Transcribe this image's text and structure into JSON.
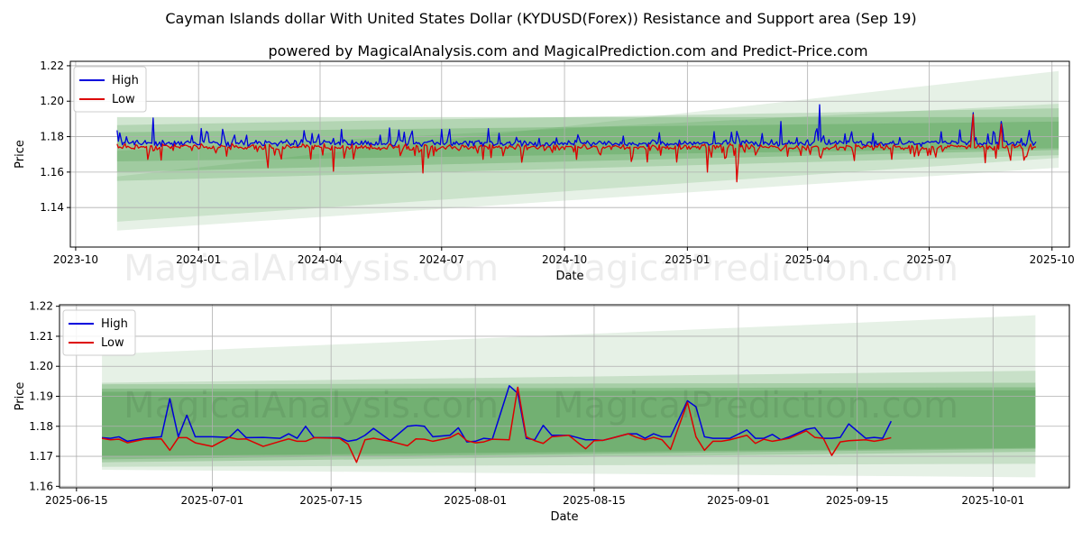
{
  "page": {
    "title": "Cayman Islands dollar With United States Dollar (KYDUSD(Forex)) Resistance and Support area (Sep 19)",
    "subtitle": "powered by MagicalAnalysis.com and MagicalPrediction.com and Predict-Price.com",
    "watermarks": [
      "MagicalAnalysis.com",
      "MagicalPrediction.com"
    ]
  },
  "colors": {
    "high": "#0000dd",
    "low": "#dd0000",
    "band": "#2e8b2e",
    "grid": "#b0b0b0"
  },
  "chart_data": [
    {
      "type": "line",
      "panel": "top",
      "xlabel": "Date",
      "ylabel": "Price",
      "xlim": [
        "2023-09-27",
        "2025-10-14"
      ],
      "ylim": [
        1.1177,
        1.2225
      ],
      "x_ticks": [
        {
          "date": "2023-10-01",
          "label": "2023-10"
        },
        {
          "date": "2024-01-01",
          "label": "2024-01"
        },
        {
          "date": "2024-04-01",
          "label": "2024-04"
        },
        {
          "date": "2024-07-01",
          "label": "2024-07"
        },
        {
          "date": "2024-10-01",
          "label": "2024-10"
        },
        {
          "date": "2025-01-01",
          "label": "2025-01"
        },
        {
          "date": "2025-04-01",
          "label": "2025-04"
        },
        {
          "date": "2025-07-01",
          "label": "2025-07"
        },
        {
          "date": "2025-10-01",
          "label": "2025-10"
        }
      ],
      "y_ticks": [
        1.14,
        1.16,
        1.18,
        1.2,
        1.22
      ],
      "legend": {
        "position": "top-left",
        "entries": [
          "High",
          "Low"
        ]
      },
      "series_range": {
        "start": "2023-11-01",
        "end": "2025-09-19"
      },
      "base_price": 1.1752,
      "highlights": [
        {
          "date": "2023-11-04",
          "high": 1.1835,
          "low": 1.1735
        },
        {
          "date": "2023-11-28",
          "high": 1.1905,
          "low": 1.172
        },
        {
          "date": "2024-01-13",
          "high": 1.1805,
          "low": 1.169
        },
        {
          "date": "2024-02-22",
          "high": 1.177,
          "low": 1.1625
        },
        {
          "date": "2024-04-11",
          "high": 1.179,
          "low": 1.1605
        },
        {
          "date": "2024-06-17",
          "high": 1.176,
          "low": 1.1595
        },
        {
          "date": "2024-08-05",
          "high": 1.1845,
          "low": 1.173
        },
        {
          "date": "2025-01-16",
          "high": 1.1765,
          "low": 1.16
        },
        {
          "date": "2025-02-07",
          "high": 1.183,
          "low": 1.1545
        },
        {
          "date": "2025-03-12",
          "high": 1.1885,
          "low": 1.172
        },
        {
          "date": "2025-04-10",
          "high": 1.198,
          "low": 1.169
        },
        {
          "date": "2025-05-06",
          "high": 1.1765,
          "low": 1.1665
        },
        {
          "date": "2025-07-06",
          "high": 1.1775,
          "low": 1.1685
        },
        {
          "date": "2025-08-03",
          "high": 1.1935,
          "low": 1.1925
        },
        {
          "date": "2025-08-24",
          "high": 1.1885,
          "low": 1.187
        }
      ],
      "bands": [
        {
          "start": "2023-11-01",
          "end": "2025-10-06",
          "upper": [
            1.1575,
            1.217
          ],
          "lower": [
            1.127,
            1.1625
          ],
          "opacity": 0.12
        },
        {
          "start": "2023-11-01",
          "end": "2025-10-06",
          "upper": [
            1.172,
            1.1985
          ],
          "lower": [
            1.132,
            1.168
          ],
          "opacity": 0.14
        },
        {
          "start": "2023-11-01",
          "end": "2025-10-06",
          "upper": [
            1.1865,
            1.196
          ],
          "lower": [
            1.155,
            1.1695
          ],
          "opacity": 0.18
        },
        {
          "start": "2023-11-01",
          "end": "2025-10-06",
          "upper": [
            1.191,
            1.191
          ],
          "lower": [
            1.16,
            1.1725
          ],
          "opacity": 0.22
        },
        {
          "start": "2023-11-01",
          "end": "2025-10-06",
          "upper": [
            1.1825,
            1.1885
          ],
          "lower": [
            1.166,
            1.1735
          ],
          "opacity": 0.22
        }
      ]
    },
    {
      "type": "line",
      "panel": "bottom",
      "xlabel": "Date",
      "ylabel": "Price",
      "xlim": [
        "2025-06-13",
        "2025-10-10"
      ],
      "ylim": [
        1.1595,
        1.2205
      ],
      "x_ticks": [
        {
          "date": "2025-06-15",
          "label": "2025-06-15"
        },
        {
          "date": "2025-07-01",
          "label": "2025-07-01"
        },
        {
          "date": "2025-07-15",
          "label": "2025-07-15"
        },
        {
          "date": "2025-08-01",
          "label": "2025-08-01"
        },
        {
          "date": "2025-08-15",
          "label": "2025-08-15"
        },
        {
          "date": "2025-09-01",
          "label": "2025-09-01"
        },
        {
          "date": "2025-09-15",
          "label": "2025-09-15"
        },
        {
          "date": "2025-10-01",
          "label": "2025-10-01"
        }
      ],
      "y_ticks": [
        1.16,
        1.17,
        1.18,
        1.19,
        1.2,
        1.21,
        1.22
      ],
      "legend": {
        "position": "top-left",
        "entries": [
          "High",
          "Low"
        ]
      },
      "high": [
        [
          "2025-06-18",
          1.1762
        ],
        [
          "2025-06-19",
          1.176
        ],
        [
          "2025-06-20",
          1.1765
        ],
        [
          "2025-06-21",
          1.175
        ],
        [
          "2025-06-23",
          1.176
        ],
        [
          "2025-06-25",
          1.1765
        ],
        [
          "2025-06-26",
          1.1892
        ],
        [
          "2025-06-27",
          1.1765
        ],
        [
          "2025-06-28",
          1.1837
        ],
        [
          "2025-06-29",
          1.1765
        ],
        [
          "2025-07-01",
          1.1765
        ],
        [
          "2025-07-03",
          1.1763
        ],
        [
          "2025-07-04",
          1.179
        ],
        [
          "2025-07-05",
          1.1762
        ],
        [
          "2025-07-07",
          1.1763
        ],
        [
          "2025-07-09",
          1.176
        ],
        [
          "2025-07-10",
          1.1775
        ],
        [
          "2025-07-11",
          1.176
        ],
        [
          "2025-07-12",
          1.18
        ],
        [
          "2025-07-13",
          1.1762
        ],
        [
          "2025-07-16",
          1.1762
        ],
        [
          "2025-07-17",
          1.175
        ],
        [
          "2025-07-18",
          1.1755
        ],
        [
          "2025-07-19",
          1.177
        ],
        [
          "2025-07-20",
          1.1793
        ],
        [
          "2025-07-22",
          1.1752
        ],
        [
          "2025-07-24",
          1.18
        ],
        [
          "2025-07-25",
          1.1803
        ],
        [
          "2025-07-26",
          1.18
        ],
        [
          "2025-07-27",
          1.1765
        ],
        [
          "2025-07-29",
          1.177
        ],
        [
          "2025-07-30",
          1.1795
        ],
        [
          "2025-07-31",
          1.1748
        ],
        [
          "2025-08-01",
          1.175
        ],
        [
          "2025-08-02",
          1.176
        ],
        [
          "2025-08-03",
          1.1757
        ],
        [
          "2025-08-05",
          1.1935
        ],
        [
          "2025-08-06",
          1.191
        ],
        [
          "2025-08-07",
          1.176
        ],
        [
          "2025-08-08",
          1.1755
        ],
        [
          "2025-08-09",
          1.1803
        ],
        [
          "2025-08-10",
          1.177
        ],
        [
          "2025-08-12",
          1.177
        ],
        [
          "2025-08-14",
          1.1755
        ],
        [
          "2025-08-15",
          1.1755
        ],
        [
          "2025-08-16",
          1.1753
        ],
        [
          "2025-08-17",
          1.176
        ],
        [
          "2025-08-19",
          1.1775
        ],
        [
          "2025-08-20",
          1.1775
        ],
        [
          "2025-08-21",
          1.176
        ],
        [
          "2025-08-22",
          1.1775
        ],
        [
          "2025-08-23",
          1.1765
        ],
        [
          "2025-08-24",
          1.1765
        ],
        [
          "2025-08-26",
          1.1885
        ],
        [
          "2025-08-27",
          1.1865
        ],
        [
          "2025-08-28",
          1.1765
        ],
        [
          "2025-08-29",
          1.176
        ],
        [
          "2025-08-30",
          1.176
        ],
        [
          "2025-08-31",
          1.176
        ],
        [
          "2025-09-02",
          1.1788
        ],
        [
          "2025-09-03",
          1.176
        ],
        [
          "2025-09-04",
          1.176
        ],
        [
          "2025-09-05",
          1.1773
        ],
        [
          "2025-09-06",
          1.1755
        ],
        [
          "2025-09-07",
          1.1765
        ],
        [
          "2025-09-09",
          1.179
        ],
        [
          "2025-09-10",
          1.1795
        ],
        [
          "2025-09-11",
          1.176
        ],
        [
          "2025-09-12",
          1.176
        ],
        [
          "2025-09-13",
          1.1763
        ],
        [
          "2025-09-14",
          1.1808
        ],
        [
          "2025-09-16",
          1.176
        ],
        [
          "2025-09-17",
          1.1763
        ],
        [
          "2025-09-18",
          1.176
        ],
        [
          "2025-09-19",
          1.1817
        ]
      ],
      "low": [
        [
          "2025-06-18",
          1.176
        ],
        [
          "2025-06-19",
          1.1755
        ],
        [
          "2025-06-20",
          1.1757
        ],
        [
          "2025-06-21",
          1.1745
        ],
        [
          "2025-06-23",
          1.1757
        ],
        [
          "2025-06-25",
          1.1758
        ],
        [
          "2025-06-26",
          1.172
        ],
        [
          "2025-06-27",
          1.1762
        ],
        [
          "2025-06-28",
          1.1762
        ],
        [
          "2025-06-29",
          1.1745
        ],
        [
          "2025-07-01",
          1.1733
        ],
        [
          "2025-07-03",
          1.1763
        ],
        [
          "2025-07-04",
          1.1757
        ],
        [
          "2025-07-05",
          1.1758
        ],
        [
          "2025-07-07",
          1.1733
        ],
        [
          "2025-07-09",
          1.175
        ],
        [
          "2025-07-10",
          1.1758
        ],
        [
          "2025-07-11",
          1.175
        ],
        [
          "2025-07-12",
          1.175
        ],
        [
          "2025-07-13",
          1.1762
        ],
        [
          "2025-07-16",
          1.176
        ],
        [
          "2025-07-17",
          1.174
        ],
        [
          "2025-07-18",
          1.168
        ],
        [
          "2025-07-19",
          1.1755
        ],
        [
          "2025-07-20",
          1.176
        ],
        [
          "2025-07-22",
          1.175
        ],
        [
          "2025-07-24",
          1.1735
        ],
        [
          "2025-07-25",
          1.1758
        ],
        [
          "2025-07-26",
          1.1757
        ],
        [
          "2025-07-27",
          1.175
        ],
        [
          "2025-07-29",
          1.1762
        ],
        [
          "2025-07-30",
          1.1777
        ],
        [
          "2025-07-31",
          1.1752
        ],
        [
          "2025-08-01",
          1.1745
        ],
        [
          "2025-08-02",
          1.1748
        ],
        [
          "2025-08-03",
          1.1757
        ],
        [
          "2025-08-05",
          1.1755
        ],
        [
          "2025-08-06",
          1.193
        ],
        [
          "2025-08-07",
          1.1765
        ],
        [
          "2025-08-08",
          1.1752
        ],
        [
          "2025-08-09",
          1.1743
        ],
        [
          "2025-08-10",
          1.1765
        ],
        [
          "2025-08-12",
          1.177
        ],
        [
          "2025-08-14",
          1.1725
        ],
        [
          "2025-08-15",
          1.1752
        ],
        [
          "2025-08-16",
          1.1753
        ],
        [
          "2025-08-17",
          1.176
        ],
        [
          "2025-08-19",
          1.1775
        ],
        [
          "2025-08-20",
          1.1763
        ],
        [
          "2025-08-21",
          1.1755
        ],
        [
          "2025-08-22",
          1.1763
        ],
        [
          "2025-08-23",
          1.1755
        ],
        [
          "2025-08-24",
          1.1723
        ],
        [
          "2025-08-26",
          1.188
        ],
        [
          "2025-08-27",
          1.1765
        ],
        [
          "2025-08-28",
          1.172
        ],
        [
          "2025-08-29",
          1.175
        ],
        [
          "2025-08-30",
          1.175
        ],
        [
          "2025-08-31",
          1.1755
        ],
        [
          "2025-09-02",
          1.177
        ],
        [
          "2025-09-03",
          1.1743
        ],
        [
          "2025-09-04",
          1.1757
        ],
        [
          "2025-09-05",
          1.175
        ],
        [
          "2025-09-06",
          1.1755
        ],
        [
          "2025-09-07",
          1.176
        ],
        [
          "2025-09-09",
          1.1785
        ],
        [
          "2025-09-10",
          1.1763
        ],
        [
          "2025-09-11",
          1.176
        ],
        [
          "2025-09-12",
          1.1703
        ],
        [
          "2025-09-13",
          1.1748
        ],
        [
          "2025-09-14",
          1.1752
        ],
        [
          "2025-09-16",
          1.1755
        ],
        [
          "2025-09-17",
          1.175
        ],
        [
          "2025-09-18",
          1.1755
        ],
        [
          "2025-09-19",
          1.1762
        ]
      ],
      "bands": [
        {
          "start": "2025-06-18",
          "end": "2025-10-06",
          "upper": [
            1.204,
            1.217
          ],
          "lower": [
            1.1655,
            1.163
          ],
          "opacity": 0.12
        },
        {
          "start": "2025-06-18",
          "end": "2025-10-06",
          "upper": [
            1.1945,
            1.1985
          ],
          "lower": [
            1.1665,
            1.1675
          ],
          "opacity": 0.16
        },
        {
          "start": "2025-06-18",
          "end": "2025-10-06",
          "upper": [
            1.194,
            1.1945
          ],
          "lower": [
            1.168,
            1.1715
          ],
          "opacity": 0.22
        },
        {
          "start": "2025-06-18",
          "end": "2025-10-06",
          "upper": [
            1.1925,
            1.193
          ],
          "lower": [
            1.169,
            1.1725
          ],
          "opacity": 0.25
        },
        {
          "start": "2025-06-18",
          "end": "2025-10-06",
          "upper": [
            1.1915,
            1.192
          ],
          "lower": [
            1.17,
            1.1728
          ],
          "opacity": 0.25
        }
      ]
    }
  ]
}
